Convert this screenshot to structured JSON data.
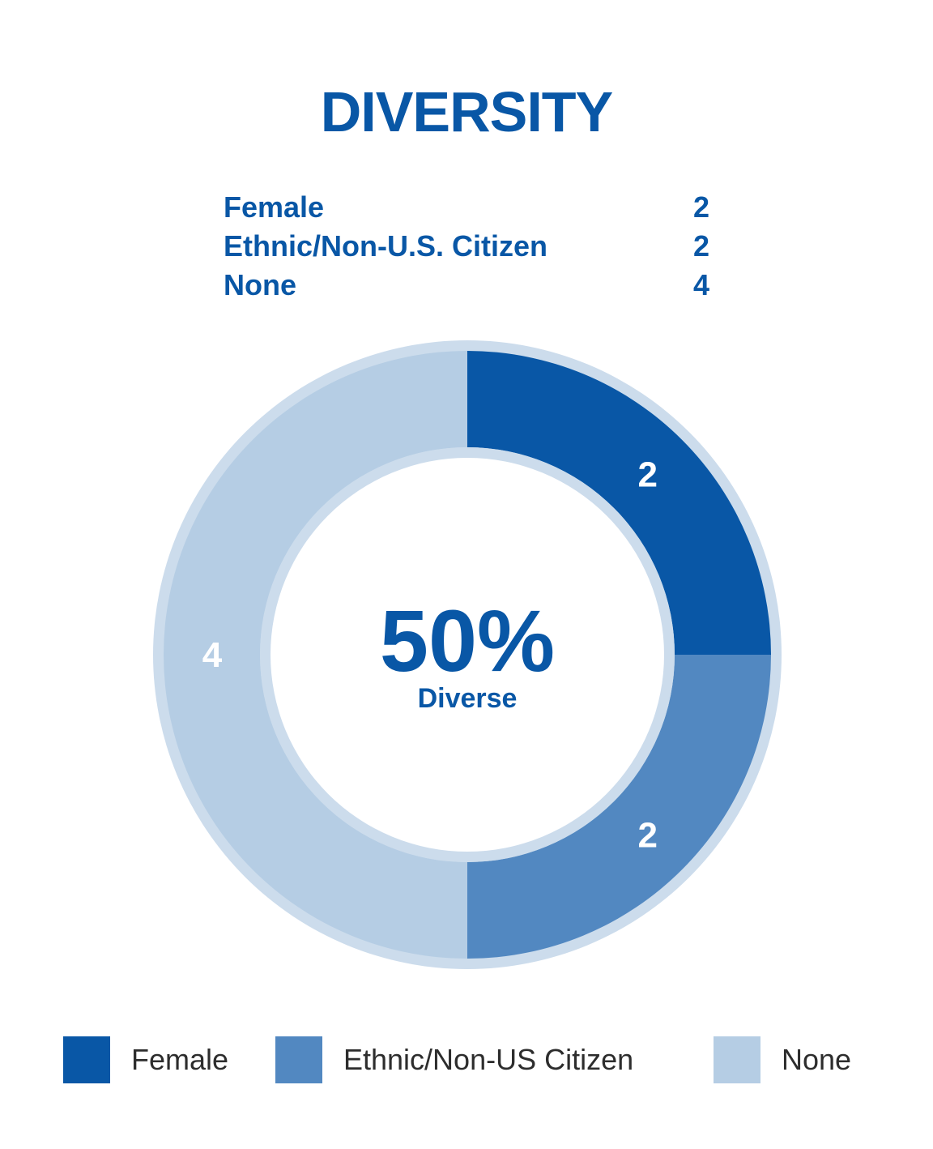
{
  "title": "DIVERSITY",
  "stats": [
    {
      "label": "Female",
      "value": "2"
    },
    {
      "label": "Ethnic/Non-U.S. Citizen",
      "value": "2"
    },
    {
      "label": "None",
      "value": "4"
    }
  ],
  "center": {
    "value": "50%",
    "label": "Diverse"
  },
  "colors": {
    "female": "#0957a6",
    "ethnic": "#5288c1",
    "none": "#b5cde4",
    "ring": "#ccdcec"
  },
  "legend": [
    {
      "label": "Female",
      "color": "#0957a6"
    },
    {
      "label": "Ethnic/Non-US Citizen",
      "color": "#5288c1"
    },
    {
      "label": "None",
      "color": "#b5cde4"
    }
  ],
  "chart_data": {
    "type": "pie",
    "title": "DIVERSITY",
    "categories": [
      "Female",
      "Ethnic/Non-US Citizen",
      "None"
    ],
    "values": [
      2,
      2,
      4
    ],
    "colors": [
      "#0957a6",
      "#5288c1",
      "#b5cde4"
    ],
    "center_text": "50%",
    "center_subtext": "Diverse",
    "legend_position": "bottom"
  }
}
